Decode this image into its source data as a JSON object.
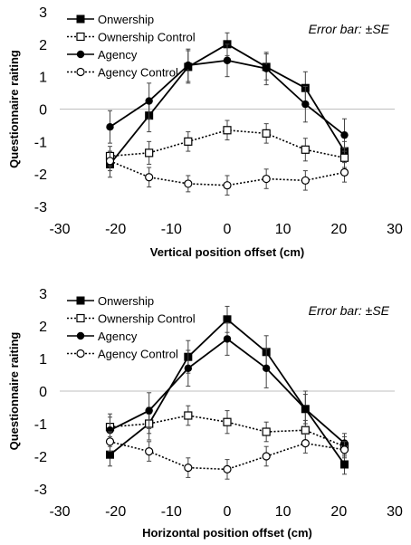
{
  "chart_data": [
    {
      "type": "line",
      "annotation": "Error bar: ±SE",
      "xlabel": "Vertical position offset (cm)",
      "ylabel": "Questionnaire raiting",
      "xlim": [
        -30,
        30
      ],
      "ylim": [
        -3,
        3
      ],
      "xticks": [
        -30,
        -20,
        -10,
        0,
        10,
        20,
        30
      ],
      "yticks": [
        -3,
        -2,
        -1,
        0,
        1,
        2,
        3
      ],
      "x": [
        -21,
        -14,
        -7,
        0,
        7,
        14,
        21
      ],
      "legend_position": "top-left",
      "series": [
        {
          "name": "Onwership",
          "marker": "square-filled",
          "line": "solid",
          "values": [
            -1.7,
            -0.2,
            1.3,
            2.0,
            1.3,
            0.65,
            -1.3
          ],
          "errors": [
            0.4,
            0.5,
            0.5,
            0.35,
            0.4,
            0.5,
            0.3
          ]
        },
        {
          "name": "Ownership Control",
          "marker": "square-open",
          "line": "dotted",
          "values": [
            -1.45,
            -1.35,
            -1.0,
            -0.65,
            -0.75,
            -1.25,
            -1.5
          ],
          "errors": [
            0.3,
            0.35,
            0.3,
            0.3,
            0.3,
            0.35,
            0.3
          ]
        },
        {
          "name": "Agency",
          "marker": "circle-filled",
          "line": "solid",
          "values": [
            -0.55,
            0.25,
            1.35,
            1.5,
            1.25,
            0.15,
            -0.8
          ],
          "errors": [
            0.5,
            0.55,
            0.5,
            0.5,
            0.5,
            0.55,
            0.5
          ]
        },
        {
          "name": "Agency Control",
          "marker": "circle-open",
          "line": "dotted",
          "values": [
            -1.6,
            -2.1,
            -2.3,
            -2.35,
            -2.15,
            -2.2,
            -1.95
          ],
          "errors": [
            0.3,
            0.3,
            0.25,
            0.3,
            0.3,
            0.3,
            0.3
          ]
        }
      ]
    },
    {
      "type": "line",
      "annotation": "Error bar: ±SE",
      "xlabel": "Horizontal position offset (cm)",
      "ylabel": "Questionnaire raiting",
      "xlim": [
        -30,
        30
      ],
      "ylim": [
        -3,
        3
      ],
      "xticks": [
        -30,
        -20,
        -10,
        0,
        10,
        20,
        30
      ],
      "yticks": [
        -3,
        -2,
        -1,
        0,
        1,
        2,
        3
      ],
      "x": [
        -21,
        -14,
        -7,
        0,
        7,
        14,
        21
      ],
      "legend_position": "top-left",
      "series": [
        {
          "name": "Onwership",
          "marker": "square-filled",
          "line": "solid",
          "values": [
            -1.95,
            -1.0,
            1.05,
            2.2,
            1.2,
            -0.55,
            -2.25
          ],
          "errors": [
            0.35,
            0.5,
            0.5,
            0.4,
            0.5,
            0.45,
            0.3
          ]
        },
        {
          "name": "Ownership Control",
          "marker": "square-open",
          "line": "dotted",
          "values": [
            -1.1,
            -1.0,
            -0.75,
            -0.95,
            -1.25,
            -1.2,
            -1.7
          ],
          "errors": [
            0.3,
            0.3,
            0.3,
            0.35,
            0.3,
            0.3,
            0.3
          ]
        },
        {
          "name": "Agency",
          "marker": "circle-filled",
          "line": "solid",
          "values": [
            -1.2,
            -0.6,
            0.7,
            1.6,
            0.7,
            -0.55,
            -1.6
          ],
          "errors": [
            0.5,
            0.55,
            0.55,
            0.5,
            0.6,
            0.55,
            0.3
          ]
        },
        {
          "name": "Agency Control",
          "marker": "circle-open",
          "line": "dotted",
          "values": [
            -1.55,
            -1.85,
            -2.35,
            -2.4,
            -2.0,
            -1.6,
            -1.8
          ],
          "errors": [
            0.3,
            0.3,
            0.3,
            0.3,
            0.3,
            0.3,
            0.25
          ]
        }
      ]
    }
  ]
}
